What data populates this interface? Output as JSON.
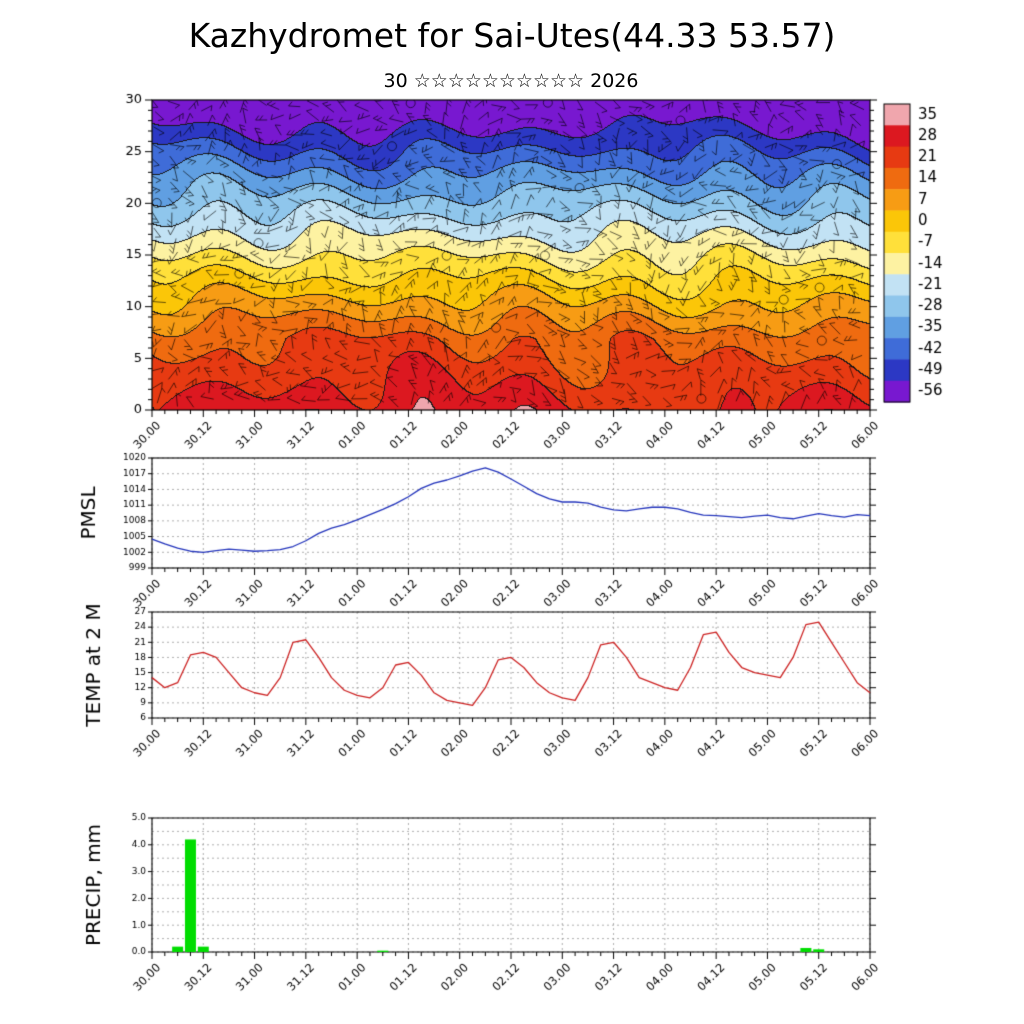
{
  "title": "Kazhydromet for Sai-Utes(44.33 53.57)",
  "subtitle": {
    "day": "30",
    "stars": "☆☆☆☆☆☆☆☆☆☆",
    "year": "2026"
  },
  "time": {
    "labels": [
      "30.00",
      "30.12",
      "31.00",
      "31.12",
      "01.00",
      "01.12",
      "02.00",
      "02.12",
      "03.00",
      "03.12",
      "04.00",
      "04.12",
      "05.00",
      "05.12",
      "06.00"
    ],
    "label_step_hours": 12,
    "minor_step_hours": 3,
    "total_hours": 168
  },
  "chart_data": [
    {
      "type": "heatmap",
      "name": "temperature-wind-height-time-cross-section",
      "ylabel": "",
      "ylim": [
        0,
        30
      ],
      "yticks": [
        0,
        5,
        10,
        15,
        20,
        25,
        30
      ],
      "overlay": "wind-barbs",
      "colorbar": {
        "ticks": [
          35,
          28,
          21,
          14,
          7,
          0,
          -7,
          -14,
          -21,
          -28,
          -35,
          -42,
          -49,
          -56
        ],
        "colors": [
          "#f0a6ad",
          "#dc1820",
          "#e73a12",
          "#ef6b10",
          "#f79c14",
          "#fbc608",
          "#ffe03a",
          "#fdf2a2",
          "#c2e2f4",
          "#8fc6ec",
          "#609fe2",
          "#3f6cd8",
          "#2c38c4",
          "#7818d0"
        ]
      }
    },
    {
      "type": "line",
      "name": "PMSL",
      "color": "#2233bb",
      "ylim": [
        999,
        1020
      ],
      "yticks": [
        999,
        1002,
        1005,
        1008,
        1011,
        1014,
        1017,
        1020
      ],
      "x_start_hour": 0,
      "x_step_hours": 3,
      "values": [
        1004.5,
        1003.6,
        1002.8,
        1002.2,
        1002.0,
        1002.3,
        1002.6,
        1002.4,
        1002.2,
        1002.3,
        1002.5,
        1003.1,
        1004.2,
        1005.6,
        1006.6,
        1007.3,
        1008.2,
        1009.2,
        1010.2,
        1011.3,
        1012.6,
        1014.2,
        1015.2,
        1015.8,
        1016.6,
        1017.5,
        1018.1,
        1017.3,
        1016.0,
        1014.6,
        1013.2,
        1012.2,
        1011.6,
        1011.6,
        1011.4,
        1010.6,
        1010.1,
        1009.9,
        1010.3,
        1010.6,
        1010.6,
        1010.3,
        1009.6,
        1009.1,
        1009.0,
        1008.8,
        1008.6,
        1008.9,
        1009.1,
        1008.6,
        1008.4,
        1008.9,
        1009.4,
        1009.0,
        1008.7,
        1009.2,
        1009.0
      ]
    },
    {
      "type": "line",
      "name": "TEMP at 2 M",
      "color": "#cc2222",
      "ylim": [
        6,
        27
      ],
      "yticks": [
        6,
        9,
        12,
        15,
        18,
        21,
        24,
        27
      ],
      "x_start_hour": 0,
      "x_step_hours": 3,
      "values": [
        14,
        12,
        13,
        18.5,
        19,
        18,
        15,
        12,
        11,
        10.5,
        14,
        21,
        21.5,
        18,
        14,
        11.5,
        10.5,
        10,
        12,
        16.5,
        17,
        14.5,
        11,
        9.5,
        9,
        8.5,
        12,
        17.5,
        18,
        16,
        13,
        11,
        10,
        9.5,
        14,
        20.5,
        21,
        18,
        14,
        13,
        12,
        11.5,
        16,
        22.5,
        23,
        19,
        16,
        15,
        14.5,
        14,
        18,
        24.5,
        25,
        21,
        17,
        13,
        11
      ]
    },
    {
      "type": "bar",
      "name": "PRECIP, mm",
      "color": "#00dd00",
      "ylim": [
        0,
        5
      ],
      "yticks": [
        0,
        1,
        2,
        3,
        4,
        5
      ],
      "ytick_labels": [
        "0.0",
        "1.0",
        "2.0",
        "3.0",
        "4.0",
        "5.0"
      ],
      "grid_values": [
        0,
        0.5,
        1,
        1.5,
        2,
        2.5,
        3,
        3.5,
        4,
        4.5,
        5
      ],
      "x_start_hour": 0,
      "x_step_hours": 3,
      "values": [
        0,
        0,
        0.2,
        4.2,
        0.2,
        0,
        0,
        0,
        0,
        0,
        0,
        0,
        0,
        0,
        0,
        0,
        0,
        0,
        0.05,
        0,
        0,
        0,
        0,
        0,
        0,
        0,
        0,
        0,
        0,
        0,
        0,
        0,
        0,
        0,
        0,
        0,
        0,
        0,
        0,
        0,
        0,
        0,
        0,
        0,
        0,
        0,
        0,
        0,
        0,
        0,
        0,
        0.15,
        0.1,
        0,
        0,
        0,
        0
      ]
    }
  ]
}
